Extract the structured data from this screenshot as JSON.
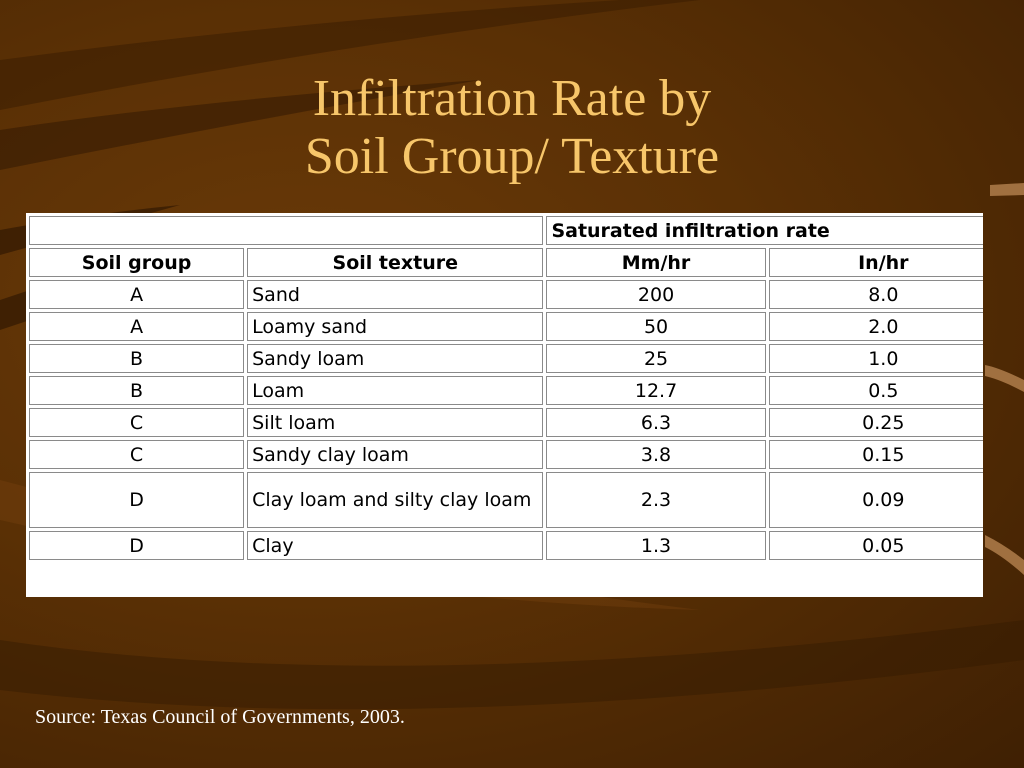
{
  "slide": {
    "title_line1": "Infiltration Rate by",
    "title_line2": "Soil Group/ Texture",
    "source": "Source: Texas Council of Governments, 2003."
  },
  "table": {
    "group_header": "Saturated infiltration rate",
    "columns": [
      "Soil group",
      "Soil texture",
      "Mm/hr",
      "In/hr"
    ],
    "rows": [
      {
        "group": "A",
        "texture": "Sand",
        "mm_hr": "200",
        "in_hr": "8.0"
      },
      {
        "group": "A",
        "texture": "Loamy sand",
        "mm_hr": "50",
        "in_hr": "2.0"
      },
      {
        "group": "B",
        "texture": "Sandy loam",
        "mm_hr": "25",
        "in_hr": "1.0"
      },
      {
        "group": "B",
        "texture": "Loam",
        "mm_hr": "12.7",
        "in_hr": "0.5"
      },
      {
        "group": "C",
        "texture": "Silt loam",
        "mm_hr": "6.3",
        "in_hr": "0.25"
      },
      {
        "group": "C",
        "texture": "Sandy clay loam",
        "mm_hr": "3.8",
        "in_hr": "0.15"
      },
      {
        "group": "D",
        "texture": "Clay loam and silty clay loam",
        "mm_hr": "2.3",
        "in_hr": "0.09"
      },
      {
        "group": "D",
        "texture": "Clay",
        "mm_hr": "1.3",
        "in_hr": "0.05"
      }
    ]
  },
  "colors": {
    "background": "#5a3005",
    "title": "#f7c66a",
    "source_text": "#ffffff"
  }
}
